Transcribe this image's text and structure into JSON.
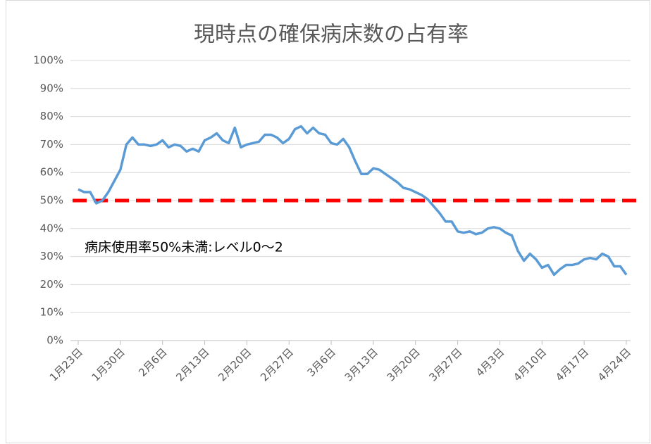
{
  "chart_data": {
    "type": "line",
    "title": "現時点の確保病床数の占有率",
    "categories": [
      "1月23日",
      null,
      null,
      null,
      null,
      null,
      null,
      "1月30日",
      null,
      null,
      null,
      null,
      null,
      null,
      "2月6日",
      null,
      null,
      null,
      null,
      null,
      null,
      "2月13日",
      null,
      null,
      null,
      null,
      null,
      null,
      "2月20日",
      null,
      null,
      null,
      null,
      null,
      null,
      "2月27日",
      null,
      null,
      null,
      null,
      null,
      null,
      "3月6日",
      null,
      null,
      null,
      null,
      null,
      null,
      "3月13日",
      null,
      null,
      null,
      null,
      null,
      null,
      "3月20日",
      null,
      null,
      null,
      null,
      null,
      null,
      "3月27日",
      null,
      null,
      null,
      null,
      null,
      null,
      "4月3日",
      null,
      null,
      null,
      null,
      null,
      null,
      "4月10日",
      null,
      null,
      null,
      null,
      null,
      null,
      "4月17日",
      null,
      null,
      null,
      null,
      null,
      null,
      "4月24日"
    ],
    "series": [
      {
        "color": "#5b9bd5",
        "values": [
          54,
          53,
          53,
          49,
          50,
          53,
          57,
          61,
          70,
          72.5,
          70,
          70,
          69.5,
          70,
          71.5,
          69,
          70,
          69.5,
          67.5,
          68.5,
          67.5,
          71.5,
          72.5,
          74,
          71.5,
          70.5,
          76,
          69,
          70,
          70.5,
          71,
          73.5,
          73.5,
          72.5,
          70.5,
          72,
          75.5,
          76.5,
          74,
          76,
          74,
          73.5,
          70.5,
          70,
          72,
          69,
          64,
          59.5,
          59.5,
          61.5,
          61,
          59.5,
          58,
          56.5,
          54.5,
          54,
          53,
          52,
          50.5,
          48,
          45.5,
          42.5,
          42.5,
          39,
          38.5,
          39,
          38,
          38.5,
          40,
          40.5,
          40,
          38.5,
          37.5,
          32,
          28.5,
          31,
          29,
          26,
          27,
          23.5,
          25.5,
          27,
          27,
          27.5,
          29,
          29.5,
          29,
          31,
          30,
          26.5,
          26.5,
          23.5
        ]
      }
    ],
    "ylim": [
      0,
      100
    ],
    "yticks": [
      {
        "value": 0,
        "label": "0%"
      },
      {
        "value": 10,
        "label": "10%"
      },
      {
        "value": 20,
        "label": "20%"
      },
      {
        "value": 30,
        "label": "30%"
      },
      {
        "value": 40,
        "label": "40%"
      },
      {
        "value": 50,
        "label": "50%"
      },
      {
        "value": 60,
        "label": "60%"
      },
      {
        "value": 70,
        "label": "70%"
      },
      {
        "value": 80,
        "label": "80%"
      },
      {
        "value": 90,
        "label": "90%"
      },
      {
        "value": 100,
        "label": "100%"
      }
    ],
    "grid": true,
    "reference_line": {
      "value": 50,
      "color": "#ff0000"
    },
    "annotation": "病床使用率50%未満:レベル0～2"
  }
}
